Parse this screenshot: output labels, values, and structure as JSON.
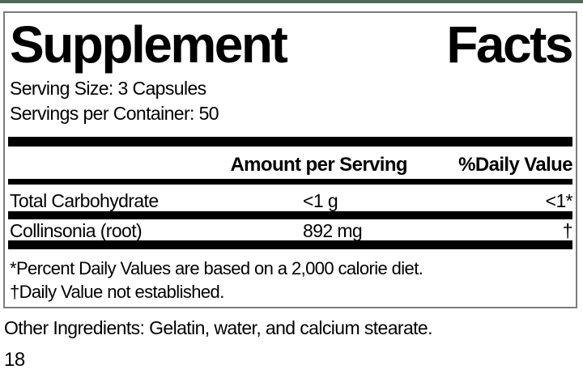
{
  "label": {
    "title": "Supplement Facts",
    "title_left": "Supplement",
    "title_right": "Facts",
    "serving_size": "Serving Size: 3 Capsules",
    "servings_per_container": "Servings per Container: 50",
    "columns": {
      "amount": "Amount per Serving",
      "daily_value": "%Daily Value"
    },
    "rows": [
      {
        "name": "Total Carbohydrate",
        "amount": "<1 g",
        "daily_value": "<1*"
      },
      {
        "name": "Collinsonia (root)",
        "amount": "892 mg",
        "daily_value": "†"
      }
    ],
    "footnotes": [
      "*Percent Daily Values are based on a 2,000 calorie diet.",
      "†Daily Value not established."
    ]
  },
  "other_ingredients": "Other Ingredients: Gelatin, water, and calcium stearate.",
  "page_number": "18",
  "colors": {
    "top_bar": "#4f6b55",
    "box_border": "#7c7c7c",
    "separator_bar": "#000000",
    "text": "#000000",
    "background": "#ffffff"
  }
}
